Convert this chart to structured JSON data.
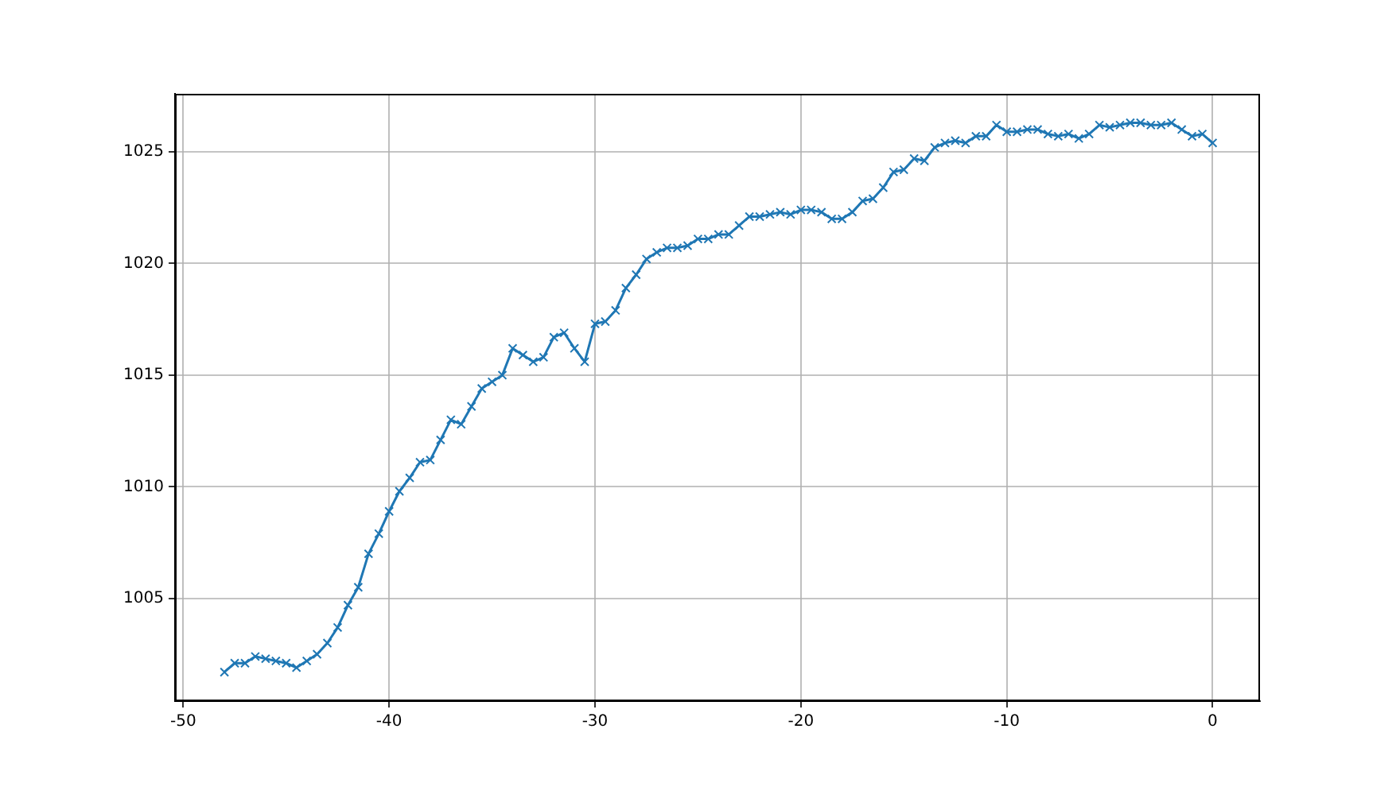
{
  "chart_data": {
    "type": "line",
    "x": [
      -48,
      -47.5,
      -47,
      -46.5,
      -46,
      -45.5,
      -45,
      -44.5,
      -44,
      -43.5,
      -43,
      -42.5,
      -42,
      -41.5,
      -41,
      -40.5,
      -40,
      -39.5,
      -39,
      -38.5,
      -38,
      -37.5,
      -37,
      -36.5,
      -36,
      -35.5,
      -35,
      -34.5,
      -34,
      -33.5,
      -33,
      -32.5,
      -32,
      -31.5,
      -31,
      -30.5,
      -30,
      -29.5,
      -29,
      -28.5,
      -28,
      -27.5,
      -27,
      -26.5,
      -26,
      -25.5,
      -25,
      -24.5,
      -24,
      -23.5,
      -23,
      -22.5,
      -22,
      -21.5,
      -21,
      -20.5,
      -20,
      -19.5,
      -19,
      -18.5,
      -18,
      -17.5,
      -17,
      -16.5,
      -16,
      -15.5,
      -15,
      -14.5,
      -14,
      -13.5,
      -13,
      -12.5,
      -12,
      -11.5,
      -11,
      -10.5,
      -10,
      -9.5,
      -9,
      -8.5,
      -8,
      -7.5,
      -7,
      -6.5,
      -6,
      -5.5,
      -5,
      -4.5,
      -4,
      -3.5,
      -3,
      -2.5,
      -2,
      -1.5,
      -1,
      -0.5,
      0
    ],
    "series": [
      {
        "color": "#1f77b4",
        "values": [
          1001.7,
          1002.1,
          1002.1,
          1002.4,
          1002.3,
          1002.2,
          1002.1,
          1001.9,
          1002.2,
          1002.5,
          1003.0,
          1003.7,
          1004.7,
          1005.5,
          1007.0,
          1007.9,
          1008.9,
          1009.8,
          1010.4,
          1011.1,
          1011.2,
          1012.1,
          1013.0,
          1012.8,
          1013.6,
          1014.4,
          1014.7,
          1015.0,
          1016.2,
          1015.9,
          1015.6,
          1015.8,
          1016.7,
          1016.9,
          1016.2,
          1015.6,
          1017.3,
          1017.4,
          1017.9,
          1018.9,
          1019.5,
          1020.2,
          1020.5,
          1020.7,
          1020.7,
          1020.8,
          1021.1,
          1021.1,
          1021.3,
          1021.3,
          1021.7,
          1022.1,
          1022.1,
          1022.2,
          1022.3,
          1022.2,
          1022.4,
          1022.4,
          1022.3,
          1022.0,
          1022.0,
          1022.3,
          1022.8,
          1022.9,
          1023.4,
          1024.1,
          1024.2,
          1024.7,
          1024.6,
          1025.2,
          1025.4,
          1025.5,
          1025.4,
          1025.7,
          1025.7,
          1026.2,
          1025.9,
          1025.9,
          1026.0,
          1026.0,
          1025.8,
          1025.7,
          1025.8,
          1025.6,
          1025.8,
          1026.2,
          1026.1,
          1026.2,
          1026.3,
          1026.3,
          1026.2,
          1026.2,
          1026.3,
          1026.0,
          1025.7,
          1025.8,
          1025.4
        ]
      }
    ],
    "xlim": [
      -50.4,
      2.3
    ],
    "xticks": [
      -50,
      -40,
      -30,
      -20,
      -10,
      0
    ],
    "ylim": [
      1000.4,
      1027.6
    ],
    "yticks": [
      1005,
      1010,
      1015,
      1020,
      1025
    ],
    "grid": true,
    "marker": "cross",
    "line_style": "solid",
    "legend": false
  }
}
